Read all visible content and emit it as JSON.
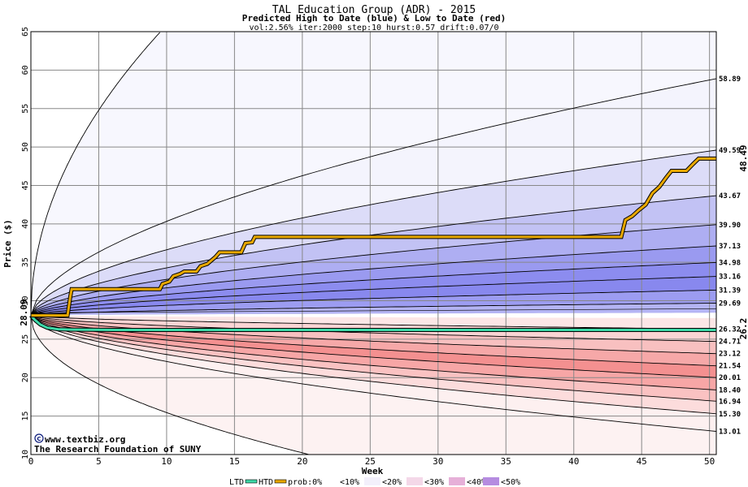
{
  "chart_data": {
    "type": "area",
    "title": "TAL Education Group (ADR) - 2015",
    "subtitle": "Predicted High to Date (blue) &  Low to Date (red)",
    "params": "vol:2.56% iter:2000 step:10 hurst:0.57 drift:0.07/0",
    "xlabel": "Week",
    "ylabel": "Price ($)",
    "xlim": [
      0,
      50.5
    ],
    "ylim": [
      10,
      65
    ],
    "xticks": [
      0,
      5,
      10,
      15,
      20,
      25,
      30,
      35,
      40,
      45,
      50
    ],
    "yticks": [
      10,
      15,
      20,
      25,
      30,
      35,
      40,
      45,
      50,
      55,
      60,
      65
    ],
    "grid": true,
    "start_price": 28.09,
    "start_label": "28.09",
    "high_label": "48.49",
    "low_label": "26.2",
    "colors": {
      "blue_zone": "#6f6ff0",
      "red_zone": "#f07a7a",
      "htd_line": "#e8a800",
      "ltd_line": "#3fd9a8",
      "high_label": "#9a6a00",
      "low_label": "#1f9e74",
      "watermark": "#0a1a7a"
    },
    "upper_bands": [
      {
        "label": "58.89",
        "end": 58.89,
        "fill": "#f4f4fd"
      },
      {
        "label": "49.59",
        "end": 49.59,
        "fill": "#dcdcf8"
      },
      {
        "label": "43.67",
        "end": 43.67,
        "fill": "#c2c2f4"
      },
      {
        "label": "39.90",
        "end": 39.9,
        "fill": "#aeaef2"
      },
      {
        "label": "37.13",
        "end": 37.13,
        "fill": "#9a9af0"
      },
      {
        "label": "34.98",
        "end": 34.98,
        "fill": "#8c8cef"
      },
      {
        "label": "33.16",
        "end": 33.16,
        "fill": "#8888ee"
      },
      {
        "label": "31.39",
        "end": 31.39,
        "fill": "#9c9cf1"
      },
      {
        "label": "29.69",
        "end": 29.69,
        "fill": "#b4b4f4"
      }
    ],
    "upper_outer": {
      "end": 64.9,
      "at_week": 9.5
    },
    "lower_bands": [
      {
        "label": "26.32",
        "end": 26.32,
        "fill": "#fce6e6"
      },
      {
        "label": "24.71",
        "end": 24.71,
        "fill": "#fad4d4"
      },
      {
        "label": "23.12",
        "end": 23.12,
        "fill": "#f8c0c0"
      },
      {
        "label": "21.54",
        "end": 21.54,
        "fill": "#f6a8a8"
      },
      {
        "label": "20.01",
        "end": 20.01,
        "fill": "#f49090"
      },
      {
        "label": "18.40",
        "end": 18.4,
        "fill": "#f7a6a6"
      },
      {
        "label": "16.94",
        "end": 16.94,
        "fill": "#fac2c2"
      },
      {
        "label": "15.30",
        "end": 15.3,
        "fill": "#fcdcdc"
      },
      {
        "label": "13.01",
        "end": 13.01,
        "fill": "#fdf0f0"
      }
    ],
    "lower_outer": {
      "end": 10.0,
      "at_week": 20.5
    },
    "htd_series": [
      [
        0,
        28.09
      ],
      [
        2.7,
        28.09
      ],
      [
        2.9,
        30.5
      ],
      [
        3.0,
        31.5
      ],
      [
        9.5,
        31.5
      ],
      [
        9.7,
        32.2
      ],
      [
        10.2,
        32.5
      ],
      [
        10.5,
        33.2
      ],
      [
        11.0,
        33.5
      ],
      [
        11.3,
        33.8
      ],
      [
        12.2,
        33.8
      ],
      [
        12.5,
        34.5
      ],
      [
        13.0,
        34.8
      ],
      [
        13.6,
        35.7
      ],
      [
        13.9,
        36.3
      ],
      [
        15.5,
        36.3
      ],
      [
        15.8,
        37.5
      ],
      [
        16.3,
        37.6
      ],
      [
        16.5,
        38.3
      ],
      [
        43.5,
        38.3
      ],
      [
        43.8,
        40.5
      ],
      [
        44.3,
        41.0
      ],
      [
        44.8,
        41.8
      ],
      [
        45.3,
        42.5
      ],
      [
        45.8,
        44.0
      ],
      [
        46.3,
        44.8
      ],
      [
        46.8,
        46.0
      ],
      [
        47.2,
        46.9
      ],
      [
        48.3,
        46.9
      ],
      [
        48.8,
        47.8
      ],
      [
        49.2,
        48.49
      ],
      [
        50.5,
        48.49
      ]
    ],
    "ltd_series": [
      [
        0,
        28.09
      ],
      [
        0.3,
        27.5
      ],
      [
        0.7,
        26.9
      ],
      [
        1.2,
        26.5
      ],
      [
        2.0,
        26.3
      ],
      [
        3.0,
        26.25
      ],
      [
        6.0,
        26.2
      ],
      [
        50.5,
        26.2
      ]
    ],
    "legend": {
      "ltd": "LTD",
      "htd": "HTD",
      "prob": "prob:0%",
      "b10": "<10%",
      "b20": "<20%",
      "b30": "<30%",
      "b40": "<40%",
      "b50": "<50%"
    },
    "watermark": {
      "line1": "www.textbiz.org",
      "line2": "The Research Foundation of SUNY"
    }
  }
}
